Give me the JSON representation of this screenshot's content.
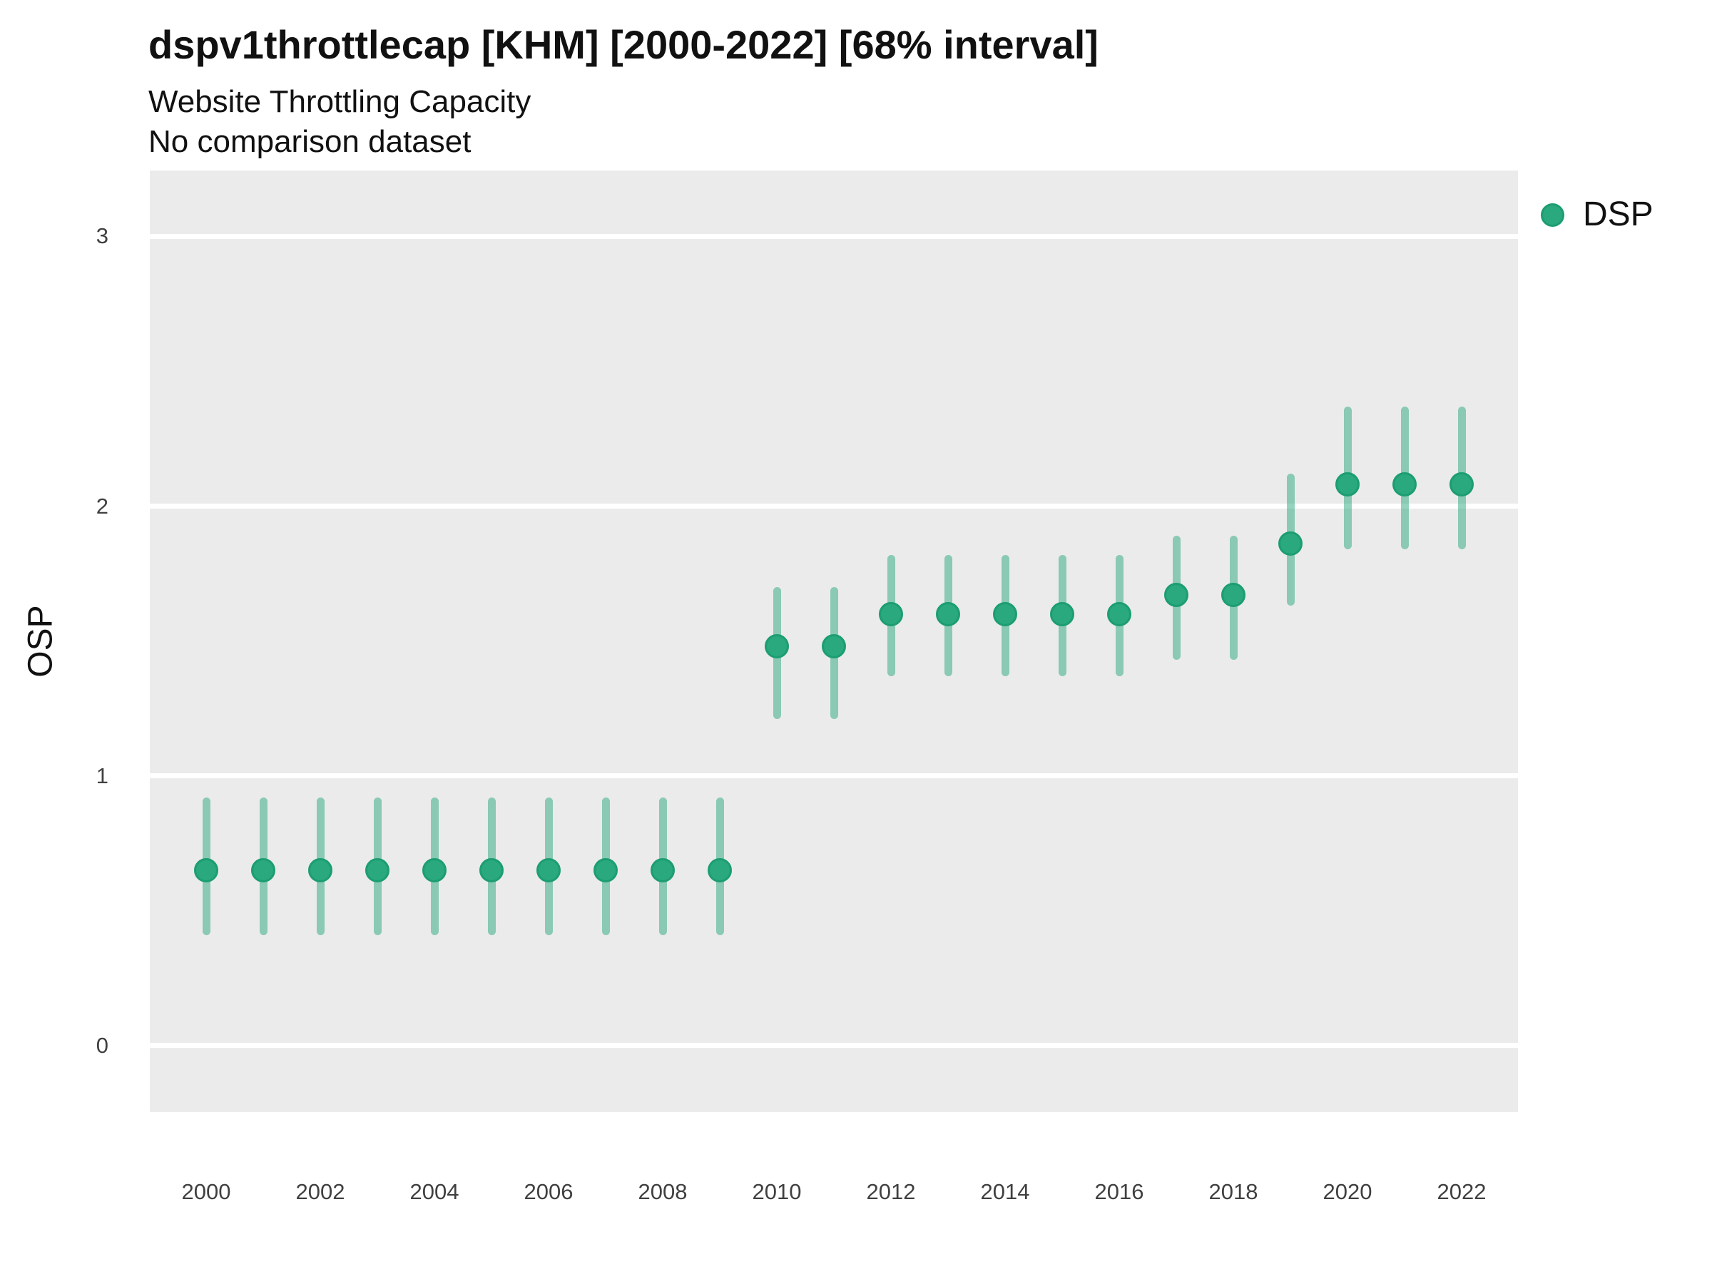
{
  "header": {
    "title": "dspv1throttlecap [KHM] [2000-2022] [68% interval]",
    "subtitle1": "Website Throttling Capacity",
    "subtitle2": "No comparison dataset"
  },
  "colors": {
    "point_fill": "#2AA87E",
    "point_border": "#1C9D72",
    "interval_bar": "rgba(42,168,126,0.5)",
    "panel_background": "#EBEBEB",
    "gridline": "#FFFFFF",
    "tick_text": "#404040"
  },
  "chart_data": {
    "type": "pointrange",
    "title": "dspv1throttlecap [KHM] [2000-2022] [68% interval]",
    "subtitle": "Website Throttling Capacity",
    "note": "No comparison dataset",
    "xlabel": "",
    "ylabel": "OSP",
    "interval_label": "68% interval",
    "legend": {
      "position": "right",
      "entries": [
        {
          "label": "DSP",
          "color": "#2AA87E"
        }
      ]
    },
    "axes": {
      "xlim": [
        2000,
        2022
      ],
      "ylim": [
        -0.246,
        3.244
      ],
      "x_ticks": [
        2000,
        2002,
        2004,
        2006,
        2008,
        2010,
        2012,
        2014,
        2016,
        2018,
        2020,
        2022
      ],
      "y_ticks": [
        0,
        1,
        2,
        3
      ],
      "grid": "major-horizontal-white-on-gray"
    },
    "series": [
      {
        "name": "DSP",
        "points": [
          {
            "year": 2000,
            "value": 0.65,
            "lo": 0.41,
            "hi": 0.92
          },
          {
            "year": 2001,
            "value": 0.65,
            "lo": 0.41,
            "hi": 0.92
          },
          {
            "year": 2002,
            "value": 0.65,
            "lo": 0.41,
            "hi": 0.92
          },
          {
            "year": 2003,
            "value": 0.65,
            "lo": 0.41,
            "hi": 0.92
          },
          {
            "year": 2004,
            "value": 0.65,
            "lo": 0.41,
            "hi": 0.92
          },
          {
            "year": 2005,
            "value": 0.65,
            "lo": 0.41,
            "hi": 0.92
          },
          {
            "year": 2006,
            "value": 0.65,
            "lo": 0.41,
            "hi": 0.92
          },
          {
            "year": 2007,
            "value": 0.65,
            "lo": 0.41,
            "hi": 0.92
          },
          {
            "year": 2008,
            "value": 0.65,
            "lo": 0.41,
            "hi": 0.92
          },
          {
            "year": 2009,
            "value": 0.65,
            "lo": 0.41,
            "hi": 0.92
          },
          {
            "year": 2010,
            "value": 1.48,
            "lo": 1.21,
            "hi": 1.7
          },
          {
            "year": 2011,
            "value": 1.48,
            "lo": 1.21,
            "hi": 1.7
          },
          {
            "year": 2012,
            "value": 1.6,
            "lo": 1.37,
            "hi": 1.82
          },
          {
            "year": 2013,
            "value": 1.6,
            "lo": 1.37,
            "hi": 1.82
          },
          {
            "year": 2014,
            "value": 1.6,
            "lo": 1.37,
            "hi": 1.82
          },
          {
            "year": 2015,
            "value": 1.6,
            "lo": 1.37,
            "hi": 1.82
          },
          {
            "year": 2016,
            "value": 1.6,
            "lo": 1.37,
            "hi": 1.82
          },
          {
            "year": 2017,
            "value": 1.67,
            "lo": 1.43,
            "hi": 1.89
          },
          {
            "year": 2018,
            "value": 1.67,
            "lo": 1.43,
            "hi": 1.89
          },
          {
            "year": 2019,
            "value": 1.86,
            "lo": 1.63,
            "hi": 2.12
          },
          {
            "year": 2020,
            "value": 2.08,
            "lo": 1.84,
            "hi": 2.37
          },
          {
            "year": 2021,
            "value": 2.08,
            "lo": 1.84,
            "hi": 2.37
          },
          {
            "year": 2022,
            "value": 2.08,
            "lo": 1.84,
            "hi": 2.37
          }
        ]
      }
    ]
  }
}
